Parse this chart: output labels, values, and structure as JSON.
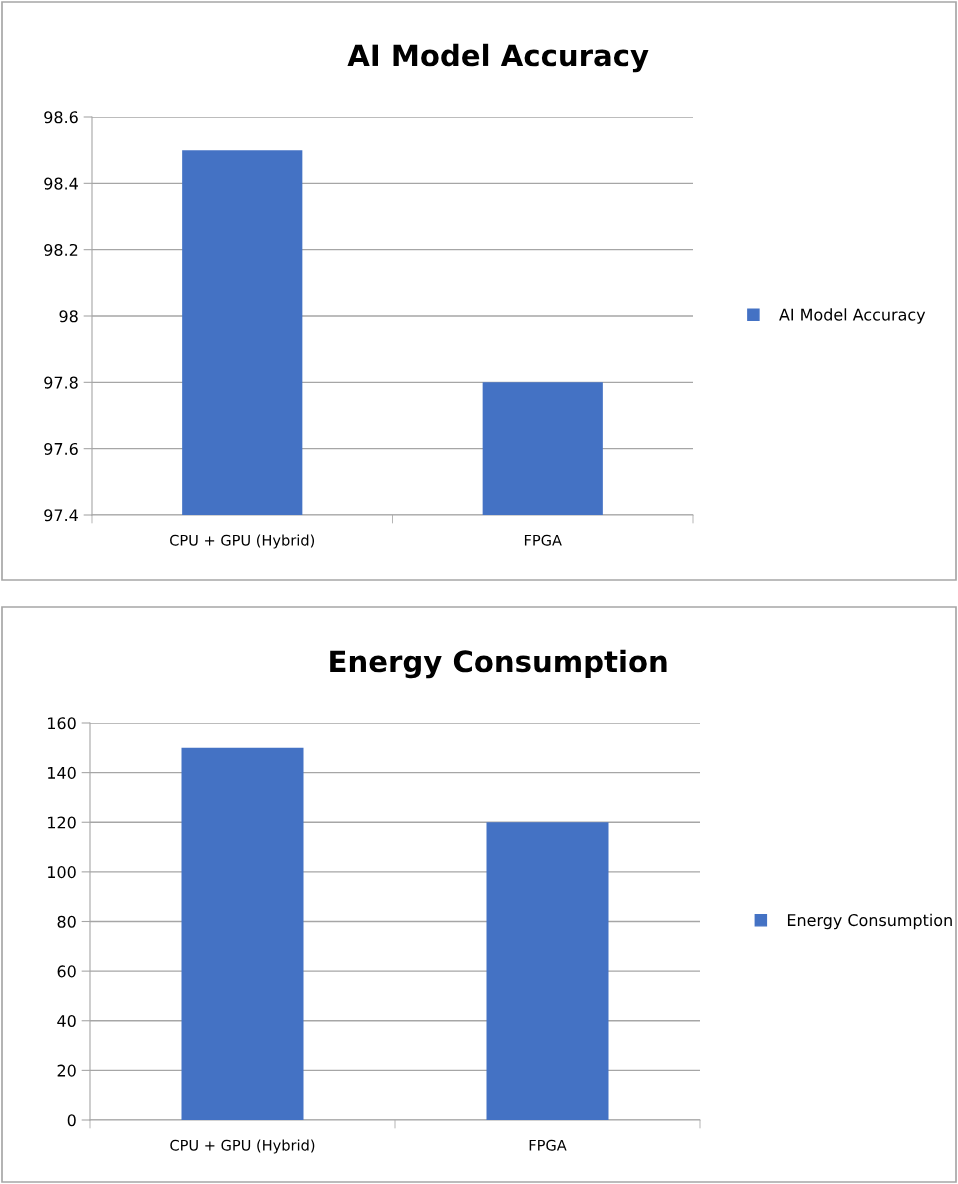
{
  "chart_data": [
    {
      "type": "bar",
      "title": "AI Model Accuracy",
      "categories": [
        "CPU + GPU (Hybrid)",
        "FPGA"
      ],
      "series": [
        {
          "name": "AI Model Accuracy",
          "color": "#4472c4",
          "values": [
            98.5,
            97.8
          ]
        }
      ],
      "ylim": [
        97.4,
        98.6
      ],
      "yticks": [
        97.4,
        97.6,
        97.8,
        98,
        98.2,
        98.4,
        98.6
      ],
      "grid": "y",
      "legend": "right"
    },
    {
      "type": "bar",
      "title": "Energy Consumption",
      "categories": [
        "CPU + GPU (Hybrid)",
        "FPGA"
      ],
      "series": [
        {
          "name": "Energy Consumption",
          "color": "#4472c4",
          "values": [
            150,
            120
          ]
        }
      ],
      "ylim": [
        0,
        160
      ],
      "yticks": [
        0,
        20,
        40,
        60,
        80,
        100,
        120,
        140,
        160
      ],
      "grid": "y",
      "legend": "right"
    }
  ]
}
